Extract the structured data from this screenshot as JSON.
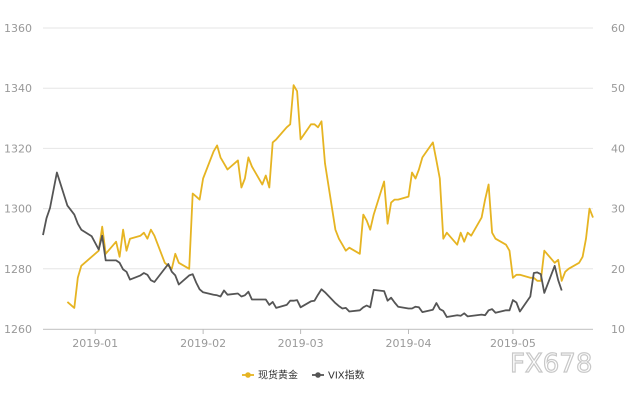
{
  "chart_data": {
    "type": "line",
    "x_ticks": [
      "2019-01",
      "2019-02",
      "2019-03",
      "2019-04",
      "2019-05"
    ],
    "y_left": {
      "ticks": [
        1260,
        1280,
        1300,
        1320,
        1340,
        1360
      ],
      "range": [
        1260,
        1360
      ]
    },
    "y_right": {
      "ticks": [
        10,
        20,
        30,
        40,
        50,
        60
      ],
      "range": [
        10,
        60
      ]
    },
    "x_range": [
      "2018-12-17",
      "2019-05-24"
    ],
    "grid": true,
    "legend_position": "bottom",
    "series": [
      {
        "name": "现货黄金",
        "axis": "left",
        "color": "#e6b422",
        "points": [
          [
            "2018-12-24",
            1269
          ],
          [
            "2018-12-26",
            1267
          ],
          [
            "2018-12-27",
            1277
          ],
          [
            "2018-12-28",
            1281
          ],
          [
            "2019-01-02",
            1286
          ],
          [
            "2019-01-03",
            1294
          ],
          [
            "2019-01-04",
            1285
          ],
          [
            "2019-01-07",
            1289
          ],
          [
            "2019-01-08",
            1284
          ],
          [
            "2019-01-09",
            1293
          ],
          [
            "2019-01-10",
            1286
          ],
          [
            "2019-01-11",
            1290
          ],
          [
            "2019-01-14",
            1291
          ],
          [
            "2019-01-15",
            1292
          ],
          [
            "2019-01-16",
            1290
          ],
          [
            "2019-01-17",
            1293
          ],
          [
            "2019-01-18",
            1291
          ],
          [
            "2019-01-21",
            1282
          ],
          [
            "2019-01-22",
            1281
          ],
          [
            "2019-01-23",
            1280
          ],
          [
            "2019-01-24",
            1285
          ],
          [
            "2019-01-25",
            1282
          ],
          [
            "2019-01-28",
            1280
          ],
          [
            "2019-01-29",
            1305
          ],
          [
            "2019-01-30",
            1304
          ],
          [
            "2019-01-31",
            1303
          ],
          [
            "2019-02-01",
            1310
          ],
          [
            "2019-02-04",
            1319
          ],
          [
            "2019-02-05",
            1321
          ],
          [
            "2019-02-06",
            1317
          ],
          [
            "2019-02-07",
            1315
          ],
          [
            "2019-02-08",
            1313
          ],
          [
            "2019-02-11",
            1316
          ],
          [
            "2019-02-12",
            1307
          ],
          [
            "2019-02-13",
            1310
          ],
          [
            "2019-02-14",
            1317
          ],
          [
            "2019-02-15",
            1314
          ],
          [
            "2019-02-18",
            1308
          ],
          [
            "2019-02-19",
            1311
          ],
          [
            "2019-02-20",
            1307
          ],
          [
            "2019-02-21",
            1322
          ],
          [
            "2019-02-22",
            1323
          ],
          [
            "2019-02-25",
            1327
          ],
          [
            "2019-02-26",
            1328
          ],
          [
            "2019-02-27",
            1341
          ],
          [
            "2019-02-28",
            1339
          ],
          [
            "2019-03-01",
            1323
          ],
          [
            "2019-03-04",
            1328
          ],
          [
            "2019-03-05",
            1328
          ],
          [
            "2019-03-06",
            1327
          ],
          [
            "2019-03-07",
            1329
          ],
          [
            "2019-03-08",
            1315
          ],
          [
            "2019-03-11",
            1293
          ],
          [
            "2019-03-12",
            1290
          ],
          [
            "2019-03-13",
            1288
          ],
          [
            "2019-03-14",
            1286
          ],
          [
            "2019-03-15",
            1287
          ],
          [
            "2019-03-18",
            1285
          ],
          [
            "2019-03-19",
            1298
          ],
          [
            "2019-03-20",
            1296
          ],
          [
            "2019-03-21",
            1293
          ],
          [
            "2019-03-22",
            1298
          ],
          [
            "2019-03-25",
            1309
          ],
          [
            "2019-03-26",
            1295
          ],
          [
            "2019-03-27",
            1302
          ],
          [
            "2019-03-28",
            1303
          ],
          [
            "2019-03-29",
            1303
          ],
          [
            "2019-04-01",
            1304
          ],
          [
            "2019-04-02",
            1312
          ],
          [
            "2019-04-03",
            1310
          ],
          [
            "2019-04-04",
            1313
          ],
          [
            "2019-04-05",
            1317
          ],
          [
            "2019-04-08",
            1322
          ],
          [
            "2019-04-09",
            1316
          ],
          [
            "2019-04-10",
            1310
          ],
          [
            "2019-04-11",
            1290
          ],
          [
            "2019-04-12",
            1292
          ],
          [
            "2019-04-15",
            1288
          ],
          [
            "2019-04-16",
            1292
          ],
          [
            "2019-04-17",
            1289
          ],
          [
            "2019-04-18",
            1292
          ],
          [
            "2019-04-19",
            1291
          ],
          [
            "2019-04-22",
            1297
          ],
          [
            "2019-04-23",
            1303
          ],
          [
            "2019-04-24",
            1308
          ],
          [
            "2019-04-25",
            1292
          ],
          [
            "2019-04-26",
            1290
          ],
          [
            "2019-04-29",
            1288
          ],
          [
            "2019-04-30",
            1286
          ],
          [
            "2019-05-01",
            1277
          ],
          [
            "2019-05-02",
            1278
          ],
          [
            "2019-05-03",
            1278
          ],
          [
            "2019-05-06",
            1277
          ],
          [
            "2019-05-07",
            1277
          ],
          [
            "2019-05-08",
            1276
          ],
          [
            "2019-05-09",
            1276
          ],
          [
            "2019-05-10",
            1286
          ],
          [
            "2019-05-13",
            1282
          ],
          [
            "2019-05-14",
            1283
          ],
          [
            "2019-05-15",
            1276
          ],
          [
            "2019-05-16",
            1279
          ],
          [
            "2019-05-17",
            1280
          ],
          [
            "2019-05-20",
            1282
          ],
          [
            "2019-05-21",
            1284
          ],
          [
            "2019-05-22",
            1290
          ],
          [
            "2019-05-23",
            1300
          ],
          [
            "2019-05-24",
            1297
          ]
        ]
      },
      {
        "name": "VIX指数",
        "axis": "right",
        "color": "#555555",
        "points": [
          [
            "2018-12-17",
            25.6
          ],
          [
            "2018-12-18",
            28.4
          ],
          [
            "2018-12-19",
            30.1
          ],
          [
            "2018-12-20",
            33.0
          ],
          [
            "2018-12-21",
            36.0
          ],
          [
            "2018-12-24",
            30.5
          ],
          [
            "2018-12-26",
            29.0
          ],
          [
            "2018-12-27",
            27.5
          ],
          [
            "2018-12-28",
            26.5
          ],
          [
            "2018-12-31",
            25.4
          ],
          [
            "2019-01-02",
            23.2
          ],
          [
            "2019-01-03",
            25.5
          ],
          [
            "2019-01-04",
            21.4
          ],
          [
            "2019-01-07",
            21.4
          ],
          [
            "2019-01-08",
            21.0
          ],
          [
            "2019-01-09",
            19.9
          ],
          [
            "2019-01-10",
            19.5
          ],
          [
            "2019-01-11",
            18.2
          ],
          [
            "2019-01-14",
            18.9
          ],
          [
            "2019-01-15",
            19.3
          ],
          [
            "2019-01-16",
            19.0
          ],
          [
            "2019-01-17",
            18.1
          ],
          [
            "2019-01-18",
            17.8
          ],
          [
            "2019-01-22",
            20.8
          ],
          [
            "2019-01-23",
            19.5
          ],
          [
            "2019-01-24",
            18.9
          ],
          [
            "2019-01-25",
            17.4
          ],
          [
            "2019-01-28",
            18.9
          ],
          [
            "2019-01-29",
            19.1
          ],
          [
            "2019-01-30",
            17.7
          ],
          [
            "2019-01-31",
            16.6
          ],
          [
            "2019-02-01",
            16.1
          ],
          [
            "2019-02-04",
            15.7
          ],
          [
            "2019-02-05",
            15.6
          ],
          [
            "2019-02-06",
            15.4
          ],
          [
            "2019-02-07",
            16.4
          ],
          [
            "2019-02-08",
            15.7
          ],
          [
            "2019-02-11",
            15.9
          ],
          [
            "2019-02-12",
            15.4
          ],
          [
            "2019-02-13",
            15.6
          ],
          [
            "2019-02-14",
            16.2
          ],
          [
            "2019-02-15",
            14.9
          ],
          [
            "2019-02-19",
            14.9
          ],
          [
            "2019-02-20",
            14.0
          ],
          [
            "2019-02-21",
            14.5
          ],
          [
            "2019-02-22",
            13.5
          ],
          [
            "2019-02-25",
            14.0
          ],
          [
            "2019-02-26",
            14.7
          ],
          [
            "2019-02-27",
            14.7
          ],
          [
            "2019-02-28",
            14.8
          ],
          [
            "2019-03-01",
            13.6
          ],
          [
            "2019-03-04",
            14.6
          ],
          [
            "2019-03-05",
            14.7
          ],
          [
            "2019-03-06",
            15.7
          ],
          [
            "2019-03-07",
            16.6
          ],
          [
            "2019-03-08",
            16.1
          ],
          [
            "2019-03-11",
            14.3
          ],
          [
            "2019-03-12",
            13.8
          ],
          [
            "2019-03-13",
            13.4
          ],
          [
            "2019-03-14",
            13.5
          ],
          [
            "2019-03-15",
            12.9
          ],
          [
            "2019-03-18",
            13.1
          ],
          [
            "2019-03-19",
            13.6
          ],
          [
            "2019-03-20",
            13.9
          ],
          [
            "2019-03-21",
            13.6
          ],
          [
            "2019-03-22",
            16.5
          ],
          [
            "2019-03-25",
            16.3
          ],
          [
            "2019-03-26",
            14.7
          ],
          [
            "2019-03-27",
            15.2
          ],
          [
            "2019-03-28",
            14.4
          ],
          [
            "2019-03-29",
            13.7
          ],
          [
            "2019-04-01",
            13.4
          ],
          [
            "2019-04-02",
            13.4
          ],
          [
            "2019-04-03",
            13.7
          ],
          [
            "2019-04-04",
            13.6
          ],
          [
            "2019-04-05",
            12.8
          ],
          [
            "2019-04-08",
            13.2
          ],
          [
            "2019-04-09",
            14.3
          ],
          [
            "2019-04-10",
            13.3
          ],
          [
            "2019-04-11",
            13.0
          ],
          [
            "2019-04-12",
            12.0
          ],
          [
            "2019-04-15",
            12.3
          ],
          [
            "2019-04-16",
            12.2
          ],
          [
            "2019-04-17",
            12.6
          ],
          [
            "2019-04-18",
            12.1
          ],
          [
            "2019-04-22",
            12.4
          ],
          [
            "2019-04-23",
            12.3
          ],
          [
            "2019-04-24",
            13.1
          ],
          [
            "2019-04-25",
            13.3
          ],
          [
            "2019-04-26",
            12.7
          ],
          [
            "2019-04-29",
            13.1
          ],
          [
            "2019-04-30",
            13.1
          ],
          [
            "2019-05-01",
            14.8
          ],
          [
            "2019-05-02",
            14.4
          ],
          [
            "2019-05-03",
            12.9
          ],
          [
            "2019-05-06",
            15.4
          ],
          [
            "2019-05-07",
            19.3
          ],
          [
            "2019-05-08",
            19.4
          ],
          [
            "2019-05-09",
            19.1
          ],
          [
            "2019-05-10",
            16.0
          ],
          [
            "2019-05-13",
            20.5
          ],
          [
            "2019-05-14",
            18.1
          ],
          [
            "2019-05-15",
            16.4
          ]
        ]
      }
    ]
  },
  "legend": {
    "items": [
      {
        "label": "现货黄金",
        "color": "#e6b422"
      },
      {
        "label": "VIX指数",
        "color": "#555555"
      }
    ]
  },
  "watermark": {
    "text": "FX678"
  }
}
